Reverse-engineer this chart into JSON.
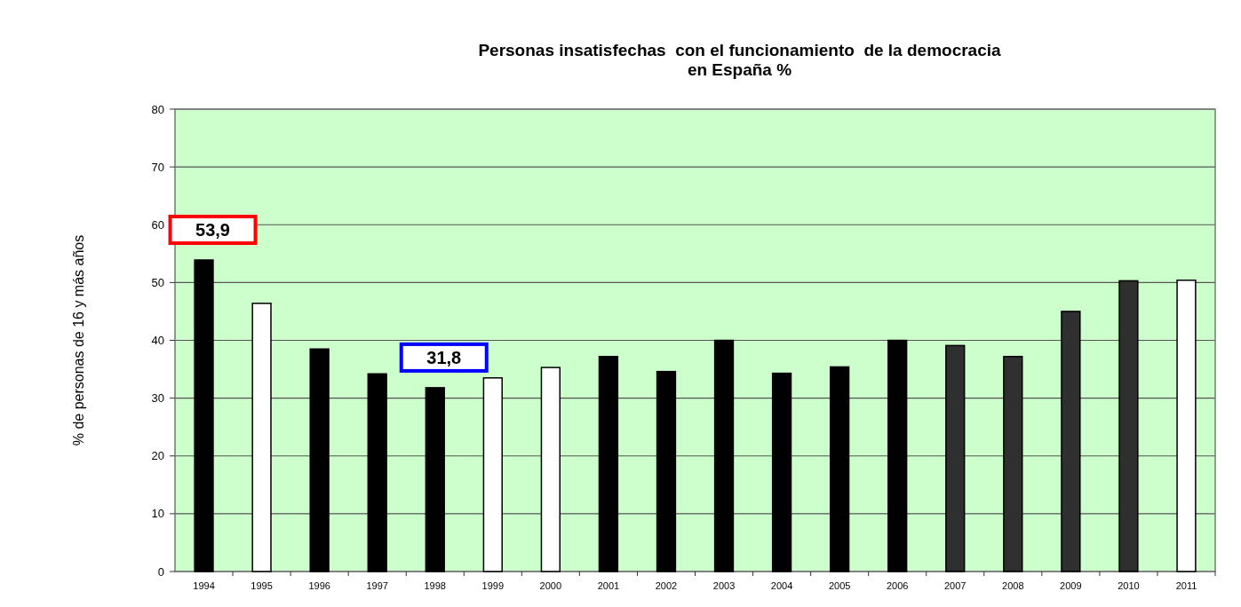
{
  "chart_data": {
    "type": "bar",
    "title": "Personas insatisfechas  con el funcionamiento  de la democracia\nen España %",
    "ylabel": "% de personas de 16 y más años",
    "categories": [
      "1994",
      "1995",
      "1996",
      "1997",
      "1998",
      "1999",
      "2000",
      "2001",
      "2002",
      "2003",
      "2004",
      "2005",
      "2006",
      "2007",
      "2008",
      "2009",
      "2010",
      "2011"
    ],
    "values": [
      53.9,
      46.4,
      38.5,
      34.2,
      31.8,
      33.5,
      35.3,
      37.2,
      34.6,
      40.0,
      34.3,
      35.4,
      40.0,
      39.1,
      37.2,
      45.0,
      50.3,
      50.4
    ],
    "colors": [
      "#000000",
      "#ffffff",
      "#000000",
      "#000000",
      "#000000",
      "#ffffff",
      "#ffffff",
      "#000000",
      "#000000",
      "#000000",
      "#000000",
      "#000000",
      "#000000",
      "#2f2f2f",
      "#2f2f2f",
      "#2f2f2f",
      "#2f2f2f",
      "#ffffff"
    ],
    "ylim": [
      0,
      80
    ],
    "yticks": [
      0,
      10,
      20,
      30,
      40,
      50,
      60,
      70,
      80
    ],
    "grid": "y",
    "annotations": [
      {
        "text": "53,9",
        "x": "1994",
        "y": 53.9
      },
      {
        "text": "31,8",
        "x": "1998",
        "y": 31.8
      }
    ]
  }
}
